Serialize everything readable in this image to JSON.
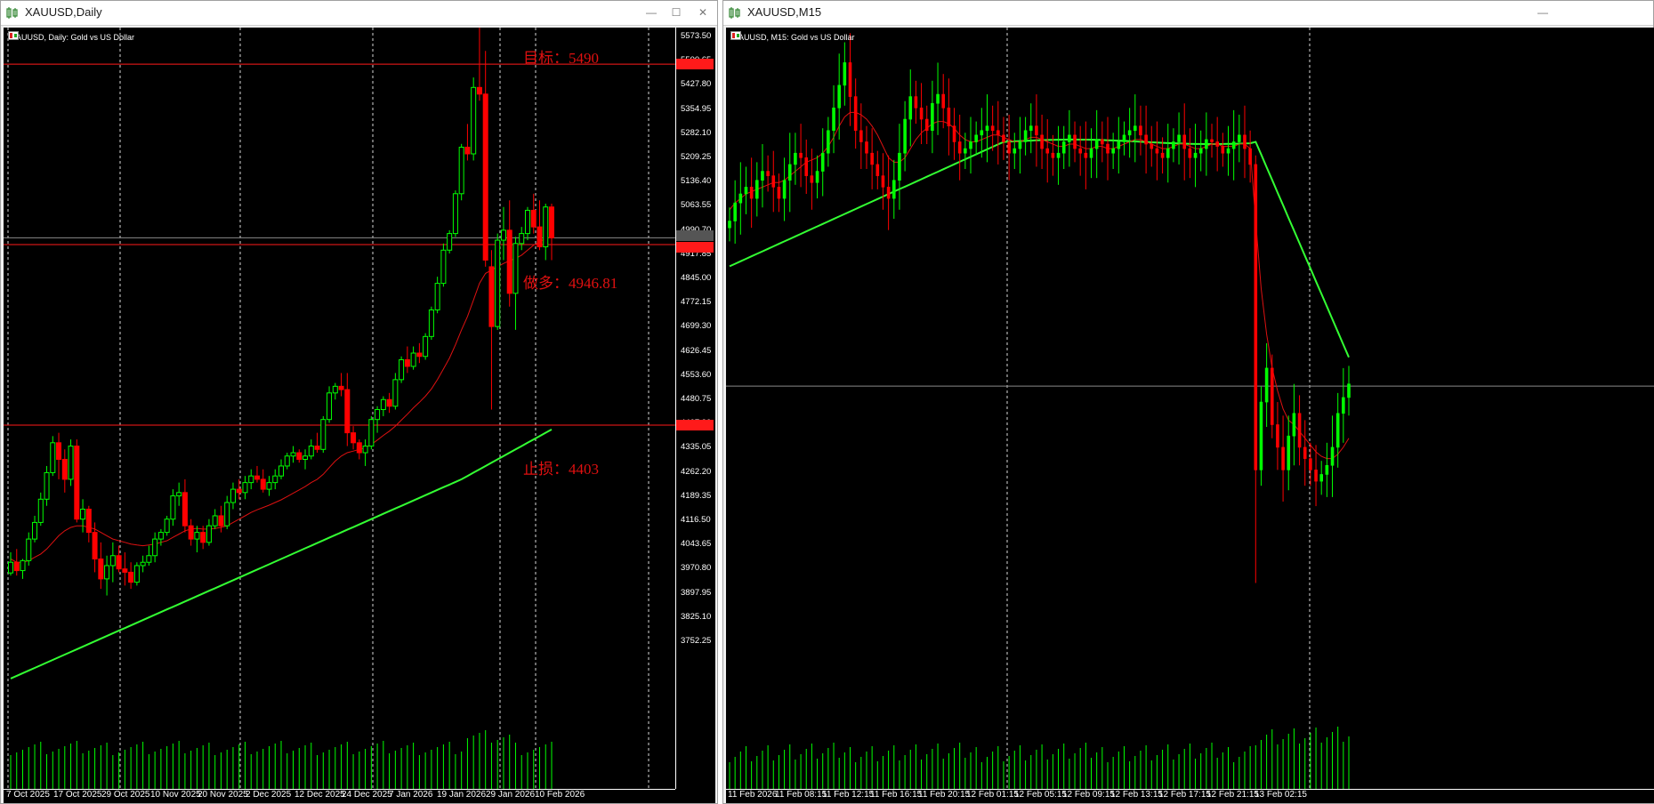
{
  "left_window": {
    "title": "XAUUSD,Daily",
    "legend": "XAUUSD, Daily:  Gold vs US Dollar",
    "annotations": {
      "target": "目标：5490",
      "long": "做多：4946.81",
      "stop": "止损：4403"
    },
    "price_labels": [
      "5573.50",
      "5500.65",
      "5427.80",
      "5354.95",
      "5282.10",
      "5209.25",
      "5136.40",
      "5063.55",
      "4990.70",
      "4917.85",
      "4845.00",
      "4772.15",
      "4699.30",
      "4626.45",
      "4553.60",
      "4480.75",
      "4407.90",
      "4335.05",
      "4262.20",
      "4189.35",
      "4116.50",
      "4043.65",
      "3970.80",
      "3897.95",
      "3825.10",
      "3752.25"
    ],
    "price_tags": {
      "target": "5490.00",
      "current": "4967.06",
      "long": "4946.81",
      "stop": "4403.00"
    },
    "x_labels": [
      "7 Oct 2025",
      "17 Oct 2025",
      "29 Oct 2025",
      "10 Nov 2025",
      "20 Nov 2025",
      "2 Dec 2025",
      "12 Dec 2025",
      "24 Dec 2025",
      "7 Jan 2026",
      "19 Jan 2026",
      "29 Jan 2026",
      "10 Feb 2026"
    ]
  },
  "right_window": {
    "title": "XAUUSD,M15",
    "legend": "XAUUSD, M15:  Gold vs US Dollar",
    "x_labels": [
      "11 Feb 2026",
      "11 Feb 08:15",
      "11 Feb 12:15",
      "11 Feb 16:15",
      "11 Feb 20:15",
      "12 Feb 01:15",
      "12 Feb 05:15",
      "12 Feb 09:15",
      "12 Feb 13:15",
      "12 Feb 17:15",
      "12 Feb 21:15",
      "13 Feb 02:15"
    ]
  },
  "colors": {
    "bull": "#00ff00",
    "bear": "#ff0000",
    "ma_slow": "#33ff33",
    "ma_fast": "#dd1111",
    "level": "#ff1a1a",
    "grid": "#ffffff",
    "bg": "#000000"
  },
  "chart_data": [
    {
      "type": "candlestick",
      "title": "XAUUSD, Daily",
      "ylim": [
        3700,
        5620
      ],
      "x_tick_labels": [
        "7 Oct 2025",
        "17 Oct 2025",
        "29 Oct 2025",
        "10 Nov 2025",
        "20 Nov 2025",
        "2 Dec 2025",
        "12 Dec 2025",
        "24 Dec 2025",
        "7 Jan 2026",
        "19 Jan 2026",
        "29 Jan 2026",
        "10 Feb 2026"
      ],
      "horizontal_levels": [
        5490,
        4946.81,
        4403
      ],
      "current_price": 4967.06,
      "candles": [
        [
          3958,
          4020,
          3950,
          3990
        ],
        [
          3990,
          4030,
          3950,
          3965
        ],
        [
          3965,
          4000,
          3940,
          3995
        ],
        [
          3995,
          4080,
          3980,
          4060
        ],
        [
          4060,
          4130,
          4050,
          4110
        ],
        [
          4110,
          4200,
          4100,
          4180
        ],
        [
          4180,
          4280,
          4160,
          4260
        ],
        [
          4260,
          4370,
          4250,
          4350
        ],
        [
          4350,
          4380,
          4240,
          4300
        ],
        [
          4300,
          4330,
          4200,
          4240
        ],
        [
          4240,
          4360,
          4220,
          4340
        ],
        [
          4340,
          4360,
          4110,
          4120
        ],
        [
          4120,
          4180,
          4080,
          4150
        ],
        [
          4150,
          4160,
          4050,
          4080
        ],
        [
          4080,
          4110,
          3960,
          4000
        ],
        [
          4000,
          4050,
          3910,
          3940
        ],
        [
          3940,
          4010,
          3890,
          3980
        ],
        [
          3980,
          4050,
          3930,
          4010
        ],
        [
          4010,
          4040,
          3960,
          3970
        ],
        [
          3970,
          4020,
          3920,
          3960
        ],
        [
          3960,
          3990,
          3910,
          3930
        ],
        [
          3930,
          3990,
          3920,
          3980
        ],
        [
          3980,
          4010,
          3960,
          3990
        ],
        [
          3990,
          4040,
          3980,
          4010
        ],
        [
          4010,
          4080,
          3990,
          4060
        ],
        [
          4060,
          4090,
          4040,
          4080
        ],
        [
          4080,
          4130,
          4070,
          4120
        ],
        [
          4120,
          4210,
          4100,
          4190
        ],
        [
          4190,
          4230,
          4160,
          4200
        ],
        [
          4200,
          4240,
          4080,
          4100
        ],
        [
          4100,
          4120,
          4040,
          4060
        ],
        [
          4060,
          4100,
          4020,
          4080
        ],
        [
          4080,
          4100,
          4030,
          4050
        ],
        [
          4050,
          4120,
          4040,
          4100
        ],
        [
          4100,
          4150,
          4090,
          4130
        ],
        [
          4130,
          4160,
          4080,
          4100
        ],
        [
          4100,
          4190,
          4090,
          4170
        ],
        [
          4170,
          4230,
          4150,
          4210
        ],
        [
          4210,
          4240,
          4180,
          4200
        ],
        [
          4200,
          4250,
          4180,
          4230
        ],
        [
          4230,
          4270,
          4210,
          4250
        ],
        [
          4250,
          4280,
          4230,
          4240
        ],
        [
          4240,
          4270,
          4200,
          4210
        ],
        [
          4210,
          4250,
          4190,
          4230
        ],
        [
          4230,
          4270,
          4210,
          4250
        ],
        [
          4250,
          4300,
          4240,
          4280
        ],
        [
          4280,
          4320,
          4270,
          4310
        ],
        [
          4310,
          4340,
          4290,
          4320
        ],
        [
          4320,
          4330,
          4290,
          4300
        ],
        [
          4300,
          4330,
          4270,
          4310
        ],
        [
          4310,
          4360,
          4300,
          4340
        ],
        [
          4340,
          4380,
          4320,
          4330
        ],
        [
          4330,
          4430,
          4320,
          4420
        ],
        [
          4420,
          4520,
          4410,
          4500
        ],
        [
          4500,
          4530,
          4480,
          4520
        ],
        [
          4520,
          4560,
          4490,
          4510
        ],
        [
          4510,
          4560,
          4340,
          4380
        ],
        [
          4380,
          4400,
          4330,
          4350
        ],
        [
          4350,
          4360,
          4300,
          4320
        ],
        [
          4320,
          4360,
          4280,
          4340
        ],
        [
          4340,
          4430,
          4330,
          4420
        ],
        [
          4420,
          4460,
          4380,
          4450
        ],
        [
          4450,
          4490,
          4430,
          4480
        ],
        [
          4480,
          4500,
          4440,
          4460
        ],
        [
          4460,
          4560,
          4450,
          4540
        ],
        [
          4540,
          4610,
          4530,
          4600
        ],
        [
          4600,
          4640,
          4560,
          4580
        ],
        [
          4580,
          4640,
          4570,
          4620
        ],
        [
          4620,
          4650,
          4590,
          4610
        ],
        [
          4610,
          4680,
          4600,
          4670
        ],
        [
          4670,
          4760,
          4660,
          4750
        ],
        [
          4750,
          4850,
          4740,
          4830
        ],
        [
          4830,
          4950,
          4820,
          4930
        ],
        [
          4930,
          4990,
          4920,
          4980
        ],
        [
          4980,
          5110,
          4970,
          5100
        ],
        [
          5100,
          5250,
          5080,
          5240
        ],
        [
          5240,
          5310,
          5200,
          5220
        ],
        [
          5220,
          5450,
          5200,
          5420
        ],
        [
          5420,
          5600,
          5380,
          5400
        ],
        [
          5400,
          5530,
          4880,
          4900
        ],
        [
          4880,
          4930,
          4450,
          4700
        ],
        [
          4700,
          4980,
          4690,
          4960
        ],
        [
          4960,
          5060,
          4900,
          4990
        ],
        [
          4990,
          5080,
          4760,
          4800
        ],
        [
          4800,
          4970,
          4690,
          4950
        ],
        [
          4950,
          5000,
          4930,
          4980
        ],
        [
          4980,
          5060,
          4960,
          5050
        ],
        [
          5050,
          5100,
          4980,
          5000
        ],
        [
          5000,
          5080,
          4930,
          4940
        ],
        [
          4940,
          5070,
          4900,
          5060
        ],
        [
          5060,
          5070,
          4900,
          4967
        ]
      ],
      "ma_fast": [
        4000,
        3990,
        3990,
        3995,
        4005,
        4015,
        4030,
        4050,
        4070,
        4085,
        4095,
        4100,
        4100,
        4095,
        4090,
        4080,
        4070,
        4060,
        4055,
        4050,
        4045,
        4042,
        4040,
        4042,
        4045,
        4050,
        4055,
        4065,
        4075,
        4085,
        4090,
        4092,
        4090,
        4090,
        4092,
        4095,
        4100,
        4110,
        4120,
        4130,
        4140,
        4148,
        4155,
        4162,
        4170,
        4178,
        4188,
        4198,
        4208,
        4218,
        4230,
        4240,
        4255,
        4275,
        4295,
        4310,
        4320,
        4325,
        4330,
        4335,
        4345,
        4358,
        4372,
        4385,
        4400,
        4418,
        4436,
        4455,
        4472,
        4490,
        4512,
        4540,
        4572,
        4605,
        4645,
        4690,
        4730,
        4780,
        4830,
        4860,
        4870,
        4880,
        4890,
        4898,
        4905,
        4915,
        4930,
        4945,
        4955,
        4965,
        4970
      ],
      "ma_slow": [
        3640,
        3648,
        3656,
        3664,
        3672,
        3680,
        3688,
        3696,
        3704,
        3712,
        3720,
        3728,
        3736,
        3744,
        3752,
        3760,
        3768,
        3776,
        3784,
        3792,
        3800,
        3808,
        3816,
        3824,
        3832,
        3840,
        3848,
        3856,
        3864,
        3872,
        3880,
        3888,
        3896,
        3904,
        3912,
        3920,
        3928,
        3936,
        3944,
        3952,
        3960,
        3968,
        3976,
        3984,
        3992,
        4000,
        4008,
        4016,
        4024,
        4032,
        4040,
        4048,
        4056,
        4064,
        4072,
        4080,
        4088,
        4096,
        4104,
        4112,
        4120,
        4128,
        4136,
        4144,
        4152,
        4160,
        4168,
        4176,
        4184,
        4192,
        4200,
        4208,
        4216,
        4224,
        4232,
        4240,
        4250,
        4260,
        4270,
        4280,
        4290,
        4300,
        4310,
        4320,
        4330,
        4340,
        4350,
        4360,
        4370,
        4380,
        4390
      ]
    },
    {
      "type": "candlestick",
      "title": "XAUUSD, M15",
      "ylim": [
        4870,
        5120
      ],
      "x_tick_labels": [
        "11 Feb 2026",
        "11 Feb 08:15",
        "11 Feb 12:15",
        "11 Feb 16:15",
        "11 Feb 20:15",
        "12 Feb 01:15",
        "12 Feb 05:15",
        "12 Feb 09:15",
        "12 Feb 13:15",
        "12 Feb 17:15",
        "12 Feb 21:15",
        "13 Feb 02:15"
      ],
      "current_price": 4967.06,
      "path": [
        5040,
        5048,
        5052,
        5055,
        5050,
        5058,
        5062,
        5060,
        5055,
        5050,
        5058,
        5065,
        5070,
        5068,
        5060,
        5057,
        5062,
        5070,
        5080,
        5090,
        5100,
        5110,
        5095,
        5080,
        5075,
        5070,
        5065,
        5060,
        5055,
        5050,
        5058,
        5070,
        5085,
        5095,
        5090,
        5085,
        5080,
        5092,
        5096,
        5090,
        5082,
        5075,
        5070,
        5072,
        5075,
        5078,
        5080,
        5082,
        5080,
        5078,
        5075,
        5070,
        5072,
        5075,
        5080,
        5082,
        5078,
        5072,
        5070,
        5068,
        5070,
        5075,
        5078,
        5072,
        5070,
        5068,
        5072,
        5076,
        5074,
        5070,
        5072,
        5075,
        5078,
        5080,
        5082,
        5078,
        5074,
        5072,
        5070,
        5068,
        5072,
        5075,
        5078,
        5072,
        5068,
        5070,
        5072,
        5076,
        5075,
        5073,
        5070,
        5072,
        5075,
        5078,
        5072,
        5065,
        4930,
        4960,
        4975,
        4950,
        4940,
        4930,
        4945,
        4955,
        4940,
        4935,
        4930,
        4925,
        4928,
        4932,
        4940,
        4955,
        4962,
        4968
      ],
      "ma_fast": [
        5045,
        5048,
        5050,
        5052,
        5053,
        5054,
        5055,
        5056,
        5057,
        5057,
        5058,
        5060,
        5062,
        5064,
        5066,
        5067,
        5068,
        5070,
        5073,
        5077,
        5082,
        5086,
        5088,
        5088,
        5087,
        5085,
        5082,
        5078,
        5073,
        5068,
        5066,
        5066,
        5068,
        5072,
        5076,
        5079,
        5081,
        5083,
        5084,
        5084,
        5083,
        5081,
        5078,
        5076,
        5075,
        5075,
        5076,
        5077,
        5078,
        5078,
        5077,
        5076,
        5075,
        5075,
        5076,
        5077,
        5077,
        5076,
        5075,
        5074,
        5073,
        5073,
        5074,
        5074,
        5073,
        5072,
        5072,
        5073,
        5073,
        5072,
        5072,
        5073,
        5074,
        5075,
        5076,
        5076,
        5075,
        5074,
        5073,
        5072,
        5072,
        5073,
        5074,
        5074,
        5073,
        5072,
        5072,
        5073,
        5074,
        5074,
        5073,
        5073,
        5073,
        5074,
        5074,
        5072,
        5040,
        5010,
        4990,
        4975,
        4965,
        4957,
        4952,
        4950,
        4947,
        4944,
        4941,
        4938,
        4936,
        4935,
        4935,
        4937,
        4940,
        4944
      ]
    }
  ]
}
